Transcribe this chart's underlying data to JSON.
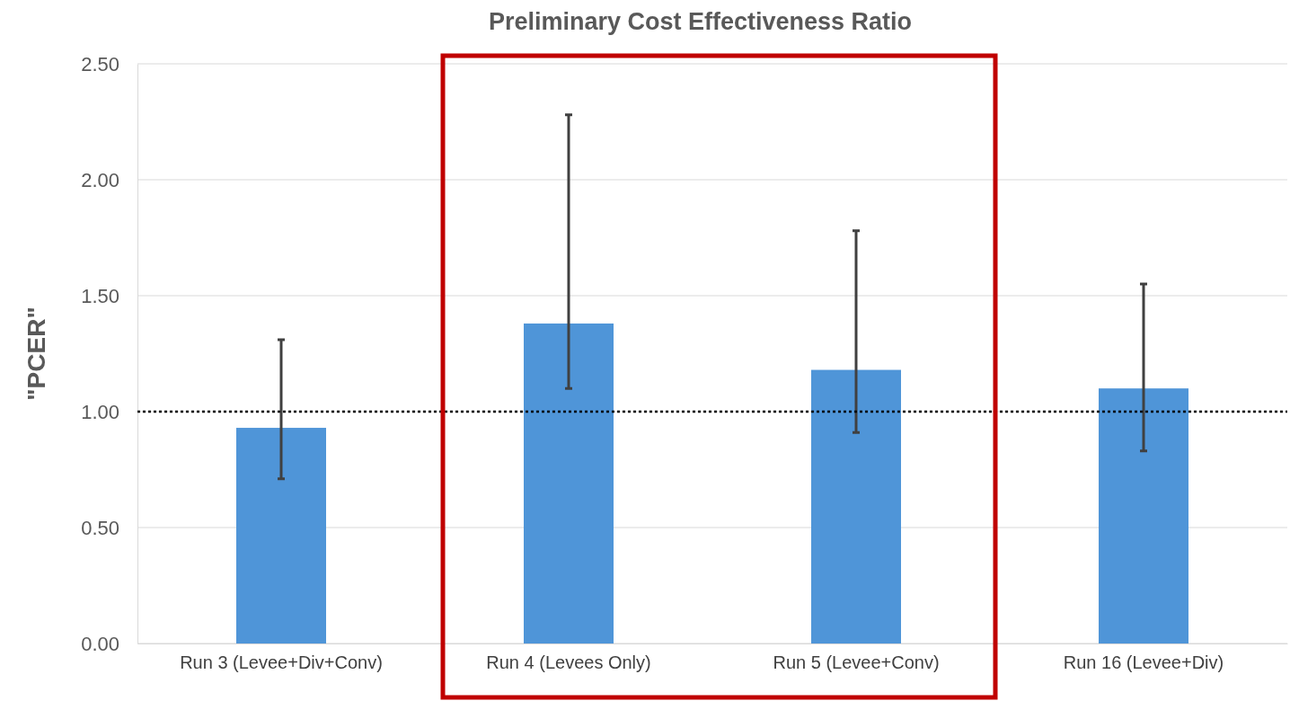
{
  "chart_data": {
    "type": "bar",
    "title": "Preliminary Cost Effectiveness Ratio",
    "ylabel": "\"PCER\"",
    "categories": [
      "Run 3 (Levee+Div+Conv)",
      "Run 4 (Levees Only)",
      "Run 5 (Levee+Conv)",
      "Run 16 (Levee+Div)"
    ],
    "values": [
      0.93,
      1.38,
      1.18,
      1.1
    ],
    "errors": [
      [
        0.71,
        1.31
      ],
      [
        1.1,
        2.28
      ],
      [
        0.91,
        1.78
      ],
      [
        0.83,
        1.55
      ]
    ],
    "color": "#4f95d8",
    "ylim": [
      0,
      2.5
    ],
    "yticks": [
      {
        "value": 0,
        "label": "0.00"
      },
      {
        "value": 0.5,
        "label": "0.50"
      },
      {
        "value": 1,
        "label": "1.00"
      },
      {
        "value": 1.5,
        "label": "1.50"
      },
      {
        "value": 2,
        "label": "2.00"
      },
      {
        "value": 2.5,
        "label": "2.50"
      }
    ],
    "grid": "y",
    "ref_lines": [
      {
        "axis": "y",
        "value": 1,
        "line_style": "dotted",
        "color": "#000000"
      }
    ]
  }
}
